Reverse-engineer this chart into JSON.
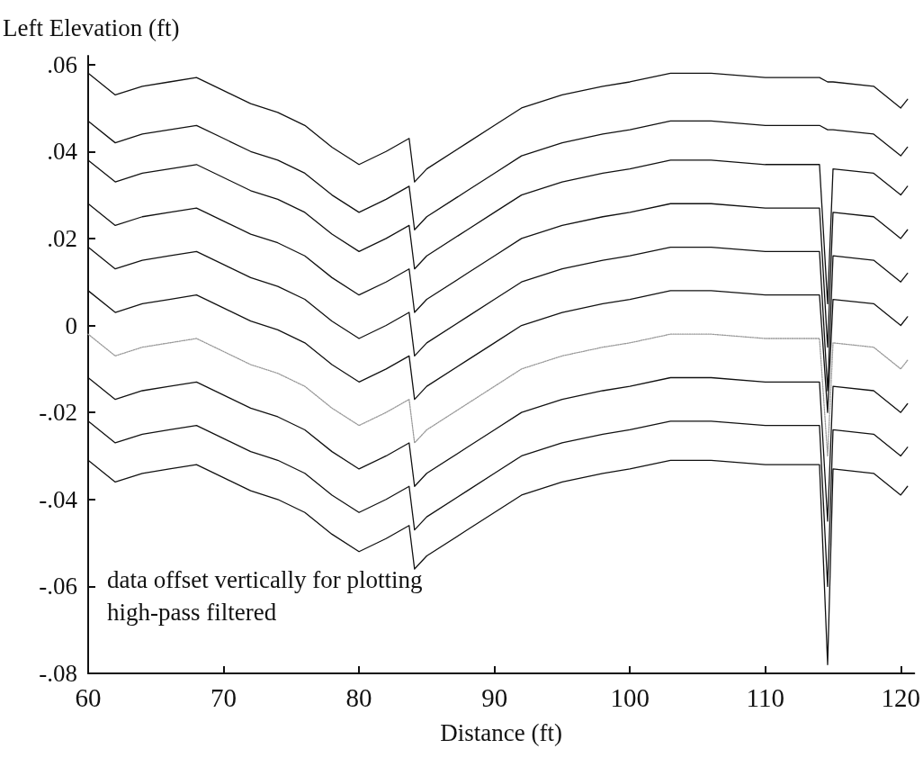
{
  "chart_data": {
    "type": "line",
    "ylabel": "Left Elevation (ft)",
    "xlabel": "Distance (ft)",
    "annotations": [
      "data offset vertically for plotting",
      "high-pass filtered"
    ],
    "xlim": [
      60,
      121
    ],
    "xticks": [
      60,
      70,
      80,
      90,
      100,
      110,
      120
    ],
    "ylim": [
      -0.08,
      0.062
    ],
    "yticks": [
      {
        "value": -0.08,
        "label": "-.08"
      },
      {
        "value": -0.06,
        "label": "-.06"
      },
      {
        "value": -0.04,
        "label": "-.04"
      },
      {
        "value": -0.02,
        "label": "-.02"
      },
      0,
      {
        "value": 0.02,
        "label": ".02"
      },
      {
        "value": 0.04,
        "label": ".04"
      },
      {
        "value": 0.06,
        "label": ".06"
      }
    ],
    "marker": "none",
    "x": [
      60,
      62,
      64,
      66,
      68,
      70,
      72,
      74,
      76,
      78,
      80,
      82,
      83.7,
      84.1,
      85,
      88,
      90,
      92,
      95,
      98,
      100,
      103,
      106,
      110,
      114,
      114.6,
      115,
      118,
      120,
      120.5
    ],
    "series": [
      {
        "color": "#111111",
        "values": [
          0.058,
          0.053,
          0.055,
          0.056,
          0.057,
          0.054,
          0.051,
          0.049,
          0.046,
          0.041,
          0.037,
          0.04,
          0.043,
          0.033,
          0.036,
          0.042,
          0.046,
          0.05,
          0.053,
          0.055,
          0.056,
          0.058,
          0.058,
          0.057,
          0.057,
          0.056,
          0.056,
          0.055,
          0.05,
          0.052
        ]
      },
      {
        "color": "#111111",
        "values": [
          0.047,
          0.042,
          0.044,
          0.045,
          0.046,
          0.043,
          0.04,
          0.038,
          0.035,
          0.03,
          0.026,
          0.029,
          0.032,
          0.022,
          0.025,
          0.031,
          0.035,
          0.039,
          0.042,
          0.044,
          0.045,
          0.047,
          0.047,
          0.046,
          0.046,
          0.045,
          0.045,
          0.044,
          0.039,
          0.041
        ]
      },
      {
        "color": "#111111",
        "values": [
          0.038,
          0.033,
          0.035,
          0.036,
          0.037,
          0.034,
          0.031,
          0.029,
          0.026,
          0.021,
          0.017,
          0.02,
          0.023,
          0.013,
          0.016,
          0.022,
          0.026,
          0.03,
          0.033,
          0.035,
          0.036,
          0.038,
          0.038,
          0.037,
          0.037,
          0.005,
          0.036,
          0.035,
          0.03,
          0.032
        ]
      },
      {
        "color": "#111111",
        "values": [
          0.028,
          0.023,
          0.025,
          0.026,
          0.027,
          0.024,
          0.021,
          0.019,
          0.016,
          0.011,
          0.007,
          0.01,
          0.013,
          0.003,
          0.006,
          0.012,
          0.016,
          0.02,
          0.023,
          0.025,
          0.026,
          0.028,
          0.028,
          0.027,
          0.027,
          -0.005,
          0.026,
          0.025,
          0.02,
          0.022
        ]
      },
      {
        "color": "#111111",
        "values": [
          0.018,
          0.013,
          0.015,
          0.016,
          0.017,
          0.014,
          0.011,
          0.009,
          0.006,
          0.001,
          -0.003,
          0.0,
          0.003,
          -0.007,
          -0.004,
          0.002,
          0.006,
          0.01,
          0.013,
          0.015,
          0.016,
          0.018,
          0.018,
          0.017,
          0.017,
          -0.015,
          0.016,
          0.015,
          0.01,
          0.012
        ]
      },
      {
        "color": "#111111",
        "values": [
          0.008,
          0.003,
          0.005,
          0.006,
          0.007,
          0.004,
          0.001,
          -0.001,
          -0.004,
          -0.009,
          -0.013,
          -0.01,
          -0.007,
          -0.017,
          -0.014,
          -0.008,
          -0.004,
          0.0,
          0.003,
          0.005,
          0.006,
          0.008,
          0.008,
          0.007,
          0.007,
          -0.02,
          0.006,
          0.005,
          0.0,
          0.002
        ]
      },
      {
        "color": "#999999",
        "line_style": "dotted",
        "values": [
          -0.002,
          -0.007,
          -0.005,
          -0.004,
          -0.003,
          -0.006,
          -0.009,
          -0.011,
          -0.014,
          -0.019,
          -0.023,
          -0.02,
          -0.017,
          -0.027,
          -0.024,
          -0.018,
          -0.014,
          -0.01,
          -0.007,
          -0.005,
          -0.004,
          -0.002,
          -0.002,
          -0.003,
          -0.003,
          -0.03,
          -0.004,
          -0.005,
          -0.01,
          -0.008
        ]
      },
      {
        "color": "#111111",
        "values": [
          -0.012,
          -0.017,
          -0.015,
          -0.014,
          -0.013,
          -0.016,
          -0.019,
          -0.021,
          -0.024,
          -0.029,
          -0.033,
          -0.03,
          -0.027,
          -0.037,
          -0.034,
          -0.028,
          -0.024,
          -0.02,
          -0.017,
          -0.015,
          -0.014,
          -0.012,
          -0.012,
          -0.013,
          -0.013,
          -0.045,
          -0.014,
          -0.015,
          -0.02,
          -0.018
        ]
      },
      {
        "color": "#111111",
        "values": [
          -0.022,
          -0.027,
          -0.025,
          -0.024,
          -0.023,
          -0.026,
          -0.029,
          -0.031,
          -0.034,
          -0.039,
          -0.043,
          -0.04,
          -0.037,
          -0.047,
          -0.044,
          -0.038,
          -0.034,
          -0.03,
          -0.027,
          -0.025,
          -0.024,
          -0.022,
          -0.022,
          -0.023,
          -0.023,
          -0.06,
          -0.024,
          -0.025,
          -0.03,
          -0.028
        ]
      },
      {
        "color": "#111111",
        "values": [
          -0.031,
          -0.036,
          -0.034,
          -0.033,
          -0.032,
          -0.035,
          -0.038,
          -0.04,
          -0.043,
          -0.048,
          -0.052,
          -0.049,
          -0.046,
          -0.056,
          -0.053,
          -0.047,
          -0.043,
          -0.039,
          -0.036,
          -0.034,
          -0.033,
          -0.031,
          -0.031,
          -0.032,
          -0.032,
          -0.078,
          -0.033,
          -0.034,
          -0.039,
          -0.037
        ]
      }
    ]
  }
}
